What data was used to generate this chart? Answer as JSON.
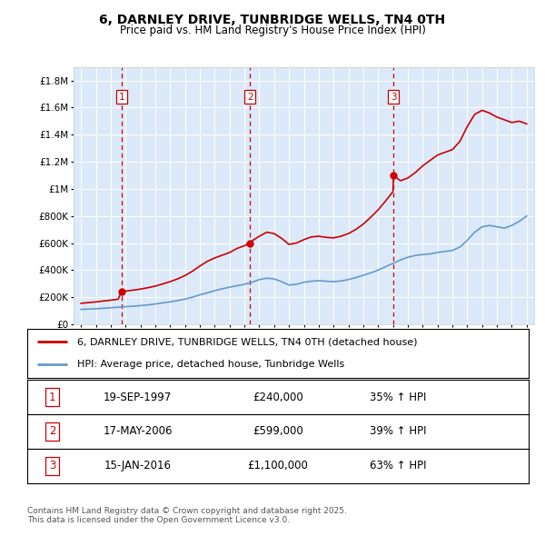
{
  "title": "6, DARNLEY DRIVE, TUNBRIDGE WELLS, TN4 0TH",
  "subtitle": "Price paid vs. HM Land Registry's House Price Index (HPI)",
  "background_color": "#dce9f8",
  "plot_bg_color": "#dce9f8",
  "legend_line1": "6, DARNLEY DRIVE, TUNBRIDGE WELLS, TN4 0TH (detached house)",
  "legend_line2": "HPI: Average price, detached house, Tunbridge Wells",
  "footer": "Contains HM Land Registry data © Crown copyright and database right 2025.\nThis data is licensed under the Open Government Licence v3.0.",
  "transactions": [
    {
      "num": 1,
      "date": "19-SEP-1997",
      "price": "£240,000",
      "hpi": "35% ↑ HPI",
      "year": 1997.72
    },
    {
      "num": 2,
      "date": "17-MAY-2006",
      "price": "£599,000",
      "hpi": "39% ↑ HPI",
      "year": 2006.38
    },
    {
      "num": 3,
      "date": "15-JAN-2016",
      "price": "£1,100,000",
      "hpi": "63% ↑ HPI",
      "year": 2016.04
    }
  ],
  "hpi_years": [
    1995,
    1995.5,
    1996,
    1996.5,
    1997,
    1997.5,
    1998,
    1998.5,
    1999,
    1999.5,
    2000,
    2000.5,
    2001,
    2001.5,
    2002,
    2002.5,
    2003,
    2003.5,
    2004,
    2004.5,
    2005,
    2005.5,
    2006,
    2006.5,
    2007,
    2007.5,
    2008,
    2008.5,
    2009,
    2009.5,
    2010,
    2010.5,
    2011,
    2011.5,
    2012,
    2012.5,
    2013,
    2013.5,
    2014,
    2014.5,
    2015,
    2015.5,
    2016,
    2016.5,
    2017,
    2017.5,
    2018,
    2018.5,
    2019,
    2019.5,
    2020,
    2020.5,
    2021,
    2021.5,
    2022,
    2022.5,
    2023,
    2023.5,
    2024,
    2024.5,
    2025
  ],
  "hpi_values": [
    110000,
    112000,
    115000,
    118000,
    122000,
    126000,
    130000,
    133000,
    138000,
    143000,
    150000,
    158000,
    166000,
    175000,
    186000,
    200000,
    218000,
    232000,
    248000,
    262000,
    274000,
    285000,
    295000,
    310000,
    330000,
    340000,
    335000,
    315000,
    290000,
    295000,
    310000,
    318000,
    322000,
    318000,
    315000,
    320000,
    330000,
    345000,
    362000,
    380000,
    400000,
    425000,
    450000,
    475000,
    495000,
    508000,
    515000,
    520000,
    530000,
    538000,
    545000,
    570000,
    620000,
    680000,
    720000,
    730000,
    720000,
    710000,
    730000,
    760000,
    800000
  ],
  "price_years": [
    1995,
    1995.5,
    1996,
    1996.5,
    1997,
    1997.5,
    1997.72,
    1998,
    1998.5,
    1999,
    1999.5,
    2000,
    2000.5,
    2001,
    2001.5,
    2002,
    2002.5,
    2003,
    2003.5,
    2004,
    2004.5,
    2005,
    2005.5,
    2006,
    2006.38,
    2006.5,
    2007,
    2007.5,
    2008,
    2008.5,
    2009,
    2009.5,
    2010,
    2010.5,
    2011,
    2011.5,
    2012,
    2012.5,
    2013,
    2013.5,
    2014,
    2014.5,
    2015,
    2015.5,
    2016,
    2016.04,
    2016.5,
    2017,
    2017.5,
    2018,
    2018.5,
    2019,
    2019.5,
    2020,
    2020.5,
    2021,
    2021.5,
    2022,
    2022.5,
    2023,
    2023.5,
    2024,
    2024.5,
    2025
  ],
  "price_values": [
    155000,
    160000,
    165000,
    172000,
    178000,
    185000,
    240000,
    245000,
    252000,
    260000,
    270000,
    282000,
    298000,
    315000,
    335000,
    360000,
    392000,
    430000,
    465000,
    490000,
    510000,
    530000,
    560000,
    580000,
    599000,
    615000,
    650000,
    680000,
    670000,
    635000,
    590000,
    600000,
    625000,
    645000,
    650000,
    642000,
    638000,
    650000,
    670000,
    700000,
    740000,
    790000,
    845000,
    910000,
    980000,
    1100000,
    1060000,
    1080000,
    1120000,
    1170000,
    1210000,
    1250000,
    1270000,
    1290000,
    1350000,
    1460000,
    1550000,
    1580000,
    1560000,
    1530000,
    1510000,
    1490000,
    1500000,
    1480000
  ],
  "red_color": "#cc0000",
  "blue_color": "#6699cc",
  "vline_color": "#cc0000",
  "ylim": [
    0,
    1900000
  ],
  "xlim": [
    1994.5,
    2025.5
  ]
}
